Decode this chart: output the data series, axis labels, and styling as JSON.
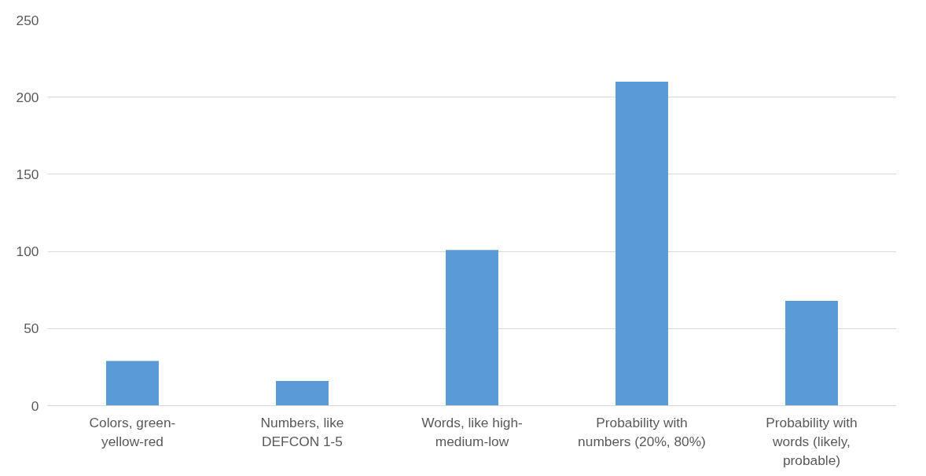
{
  "chart_data": {
    "type": "bar",
    "categories": [
      "Colors, green-yellow-red",
      "Numbers, like DEFCON 1-5",
      "Words, like high-medium-low",
      "Probability with numbers (20%, 80%)",
      "Probability with words (likely, probable)"
    ],
    "values": [
      29,
      16,
      101,
      210,
      68
    ],
    "color": "#5b9bd5",
    "ylim": [
      0,
      250
    ],
    "yticks": [
      0,
      50,
      100,
      150,
      200,
      250
    ],
    "grid": "y"
  }
}
